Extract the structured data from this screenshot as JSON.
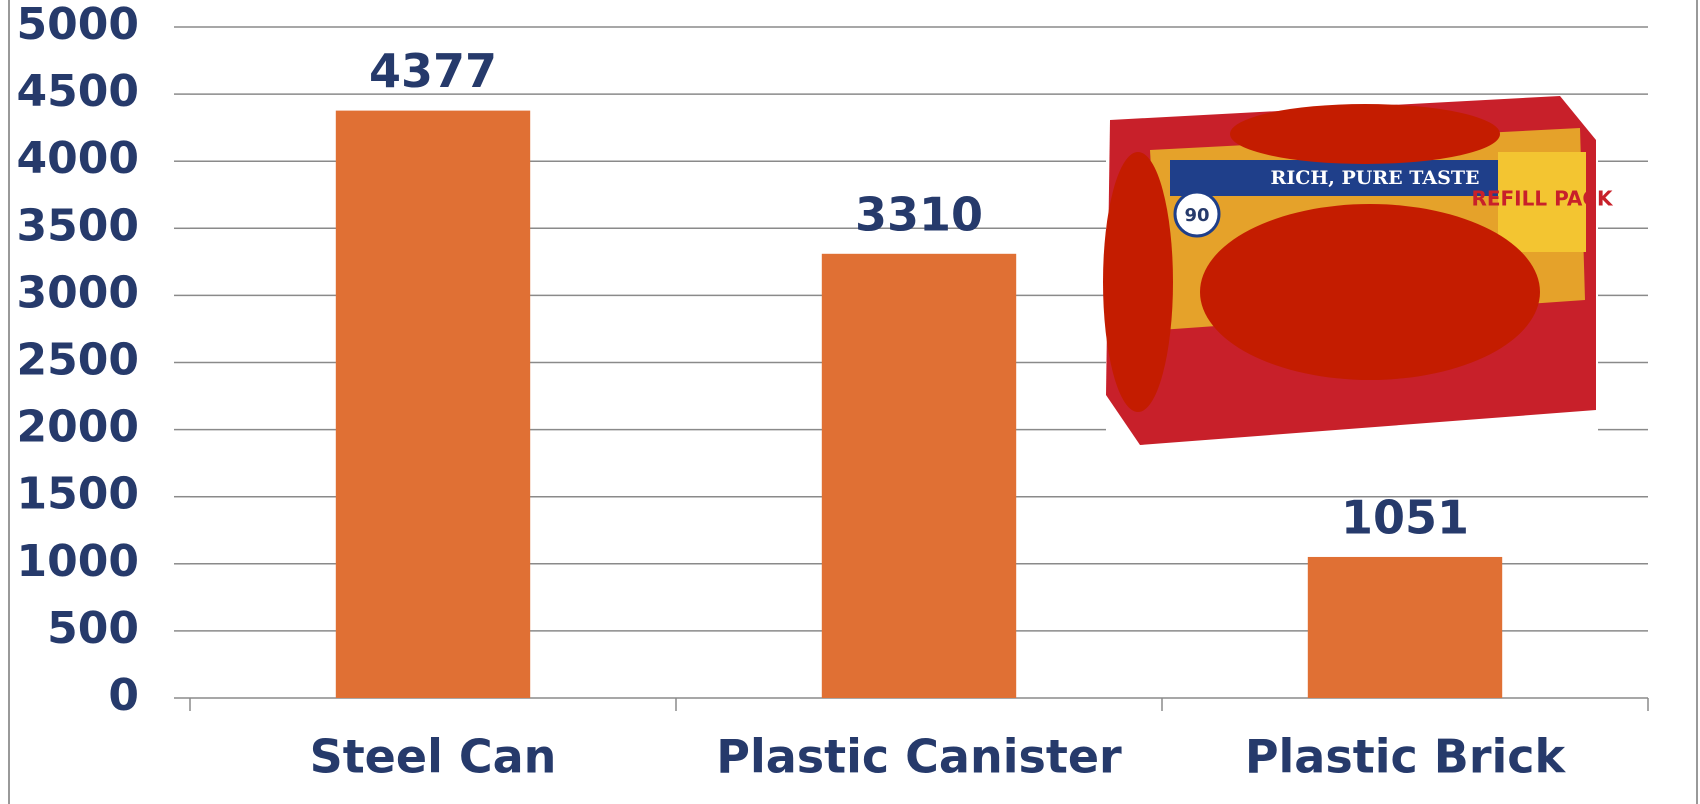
{
  "chart_data": {
    "type": "bar",
    "categories": [
      "Steel Can",
      "Plastic Canister",
      "Plastic Brick"
    ],
    "values": [
      4377,
      3310,
      1051
    ],
    "color": "#e07034",
    "ylim": [
      0,
      5000
    ],
    "yticks": [
      0,
      500,
      1000,
      1500,
      2000,
      2500,
      3000,
      3500,
      4000,
      4500,
      5000
    ],
    "grid": true
  },
  "image": {
    "texts": [
      "RICH, PURE TASTE",
      "REFILL PACK",
      "90"
    ]
  }
}
